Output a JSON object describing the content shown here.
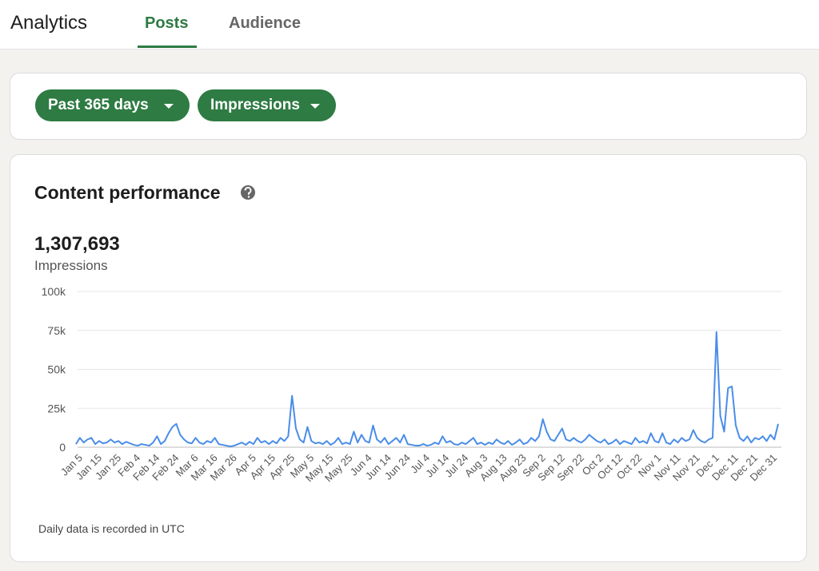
{
  "header": {
    "title": "Analytics",
    "tabs": [
      "Posts",
      "Audience"
    ]
  },
  "filters": [
    "Past 365 days",
    "Impressions"
  ],
  "summary": {
    "value": "1,307,693",
    "label": "Impressions"
  },
  "chart_data": {
    "type": "line",
    "title": "Content performance",
    "note": "Daily data is recorded in UTC",
    "color": "#4a8de8",
    "grid": true,
    "ylim": [
      0,
      100000
    ],
    "yticks": [
      0,
      {
        "value": 25000,
        "label": "25k"
      },
      {
        "value": 50000,
        "label": "50k"
      },
      {
        "value": 75000,
        "label": "75k"
      },
      {
        "value": 100000,
        "label": "100k"
      }
    ],
    "categories": [
      null,
      "Jan 5",
      null,
      null,
      null,
      null,
      "Jan 15",
      null,
      null,
      null,
      null,
      "Jan 25",
      null,
      null,
      null,
      null,
      "Feb 4",
      null,
      null,
      null,
      null,
      "Feb 14",
      null,
      null,
      null,
      null,
      "Feb 24",
      null,
      null,
      null,
      null,
      "Mar 6",
      null,
      null,
      null,
      null,
      "Mar 16",
      null,
      null,
      null,
      null,
      "Mar 26",
      null,
      null,
      null,
      null,
      "Apr 5",
      null,
      null,
      null,
      null,
      "Apr 15",
      null,
      null,
      null,
      null,
      "Apr 25",
      null,
      null,
      null,
      null,
      "May 5",
      null,
      null,
      null,
      null,
      "May 15",
      null,
      null,
      null,
      null,
      "May 25",
      null,
      null,
      null,
      null,
      "Jun 4",
      null,
      null,
      null,
      null,
      "Jun 14",
      null,
      null,
      null,
      null,
      "Jun 24",
      null,
      null,
      null,
      null,
      "Jul 4",
      null,
      null,
      null,
      null,
      "Jul 14",
      null,
      null,
      null,
      null,
      "Jul 24",
      null,
      null,
      null,
      null,
      "Aug 3",
      null,
      null,
      null,
      null,
      "Aug 13",
      null,
      null,
      null,
      null,
      "Aug 23",
      null,
      null,
      null,
      null,
      "Sep 2",
      null,
      null,
      null,
      null,
      "Sep 12",
      null,
      null,
      null,
      null,
      "Sep 22",
      null,
      null,
      null,
      null,
      "Oct 2",
      null,
      null,
      null,
      null,
      "Oct 12",
      null,
      null,
      null,
      null,
      "Oct 22",
      null,
      null,
      null,
      null,
      "Nov 1",
      null,
      null,
      null,
      null,
      "Nov 11",
      null,
      null,
      null,
      null,
      "Nov 21",
      null,
      null,
      null,
      null,
      "Dec 1",
      null,
      null,
      null,
      null,
      "Dec 11",
      null,
      null,
      null,
      null,
      "Dec 21",
      null,
      null,
      null,
      null,
      "Dec 31",
      null
    ],
    "values": [
      2000,
      6000,
      3000,
      5000,
      6000,
      2000,
      4000,
      2500,
      3000,
      5000,
      3000,
      4000,
      2000,
      3500,
      2500,
      1500,
      1000,
      2000,
      1500,
      1000,
      3000,
      7000,
      2000,
      4000,
      9000,
      13000,
      15000,
      8000,
      5000,
      3000,
      2500,
      6000,
      3000,
      2000,
      4000,
      3000,
      6000,
      2000,
      1500,
      1000,
      500,
      1000,
      2000,
      3000,
      1500,
      3500,
      2000,
      6000,
      3000,
      4000,
      2000,
      4000,
      2500,
      6000,
      4000,
      7000,
      33000,
      12000,
      5000,
      3000,
      13000,
      4000,
      2500,
      3000,
      2000,
      4000,
      1500,
      3000,
      6000,
      2000,
      3000,
      2000,
      10000,
      3000,
      8000,
      4000,
      3000,
      14000,
      5000,
      3000,
      6000,
      2000,
      4000,
      6000,
      3000,
      8000,
      2000,
      1500,
      1000,
      1000,
      2000,
      1000,
      1500,
      3000,
      2000,
      7000,
      3000,
      4000,
      2000,
      1500,
      3000,
      2000,
      4000,
      6000,
      2000,
      3000,
      1500,
      3000,
      2000,
      5000,
      3000,
      2000,
      4000,
      1500,
      3000,
      5000,
      2000,
      3000,
      6000,
      4000,
      7000,
      18000,
      10000,
      5000,
      4000,
      8000,
      12000,
      5000,
      4000,
      6000,
      4000,
      3000,
      5000,
      8000,
      6000,
      4000,
      3000,
      5000,
      2000,
      3000,
      5000,
      2000,
      4000,
      3000,
      2000,
      6000,
      3000,
      4000,
      2500,
      9000,
      4000,
      3000,
      9000,
      3000,
      2000,
      5000,
      3000,
      6000,
      4000,
      5000,
      11000,
      6000,
      4000,
      3000,
      5000,
      6000,
      74000,
      20000,
      10000,
      38000,
      39000,
      14000,
      6000,
      4000,
      7000,
      3000,
      6000,
      5000,
      7000,
      4000,
      8000,
      5000,
      15000
    ]
  }
}
